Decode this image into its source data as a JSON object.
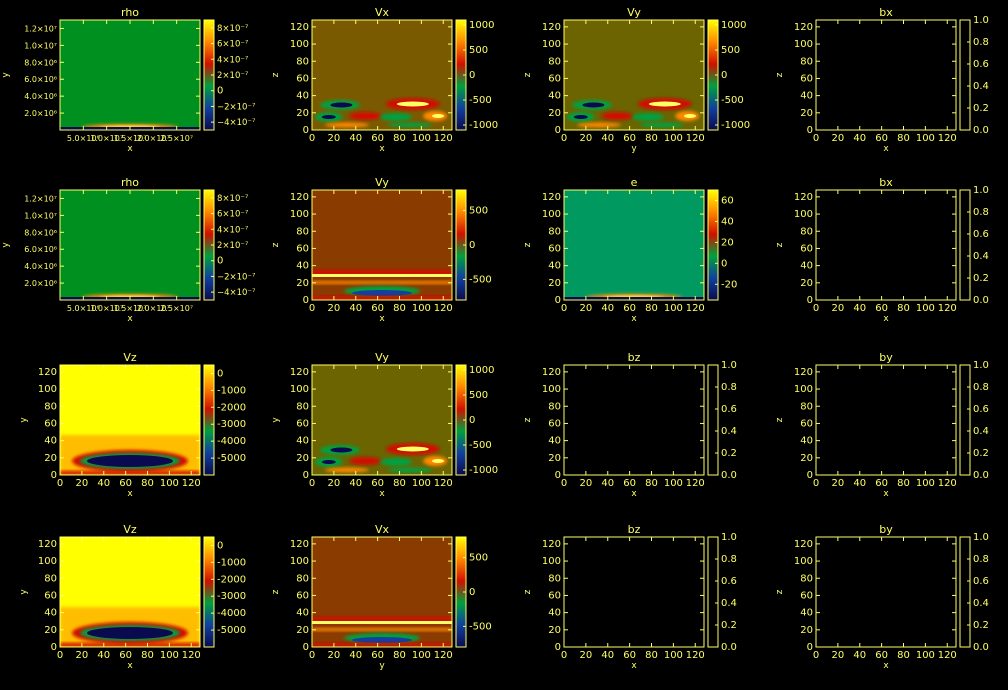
{
  "colors": {
    "foreground": "#ffff66",
    "background": "#000000",
    "empty_plot": "#000000"
  },
  "colormap": {
    "name": "red-yellow-green-blue",
    "stops": [
      "#0a0a50",
      "#1040a0",
      "#00a040",
      "#d01000",
      "#ff8800",
      "#ffff00"
    ]
  },
  "chart_data": [
    {
      "type": "heatmap",
      "title": "rho",
      "xlabel": "x",
      "ylabel": "y",
      "xticks": [
        "5.0×10⁶",
        "1.0×10⁷",
        "1.5×10⁷",
        "2.0×10⁷",
        "2.5×10⁷"
      ],
      "yticks": [
        "2.0×10⁶",
        "4.0×10⁶",
        "6.0×10⁶",
        "8.0×10⁶",
        "1.0×10⁷",
        "1.2×10⁷"
      ],
      "ylim": [
        0,
        13000000
      ],
      "ytick_values": [
        2000000,
        4000000,
        6000000,
        8000000,
        10000000,
        12000000
      ],
      "xlim": [
        0,
        30000000
      ],
      "xtick_values": [
        5000000,
        10000000,
        15000000,
        20000000,
        25000000
      ],
      "cbar_ticks": [
        "8×10⁻⁷",
        "6×10⁻⁷",
        "4×10⁻⁷",
        "2×10⁻⁷",
        "0",
        "−2×10⁻⁷",
        "−4×10⁻⁷"
      ],
      "clim": [
        -5e-07,
        9e-07
      ],
      "cbar_values": [
        8e-07,
        6e-07,
        4e-07,
        2e-07,
        0,
        -2e-07,
        -4e-07
      ],
      "pattern": "base_bottom",
      "background": "#009020"
    },
    {
      "type": "heatmap",
      "title": "Vx",
      "xlabel": "x",
      "ylabel": "z",
      "xlim": [
        0,
        128
      ],
      "ylim": [
        0,
        128
      ],
      "xticks": [
        "0",
        "20",
        "40",
        "60",
        "80",
        "100",
        "120"
      ],
      "yticks": [
        "0",
        "20",
        "40",
        "60",
        "80",
        "100",
        "120"
      ],
      "cbar_ticks": [
        "1000",
        "500",
        "0",
        "-500",
        "-1000"
      ],
      "clim": [
        -1100,
        1100
      ],
      "cbar_values": [
        1000,
        500,
        0,
        -500,
        -1000
      ],
      "pattern": "waves_bottom",
      "background": "#7a5a00"
    },
    {
      "type": "heatmap",
      "title": "Vy",
      "xlabel": "y",
      "ylabel": "z",
      "xlim": [
        0,
        128
      ],
      "ylim": [
        0,
        128
      ],
      "xticks": [
        "0",
        "20",
        "40",
        "60",
        "80",
        "100",
        "120"
      ],
      "yticks": [
        "0",
        "20",
        "40",
        "60",
        "80",
        "100",
        "120"
      ],
      "cbar_ticks": [
        "1000",
        "500",
        "0",
        "-500",
        "-1000"
      ],
      "clim": [
        -1100,
        1100
      ],
      "cbar_values": [
        1000,
        500,
        0,
        -500,
        -1000
      ],
      "pattern": "waves_bottom",
      "background": "#6b6400"
    },
    {
      "type": "heatmap",
      "title": "bx",
      "xlabel": "x",
      "ylabel": "z",
      "xlim": [
        0,
        128
      ],
      "ylim": [
        0,
        128
      ],
      "xticks": [
        "0",
        "20",
        "40",
        "60",
        "80",
        "100",
        "120"
      ],
      "yticks": [
        "0",
        "20",
        "40",
        "60",
        "80",
        "100",
        "120"
      ],
      "cbar_ticks": [
        "1.0",
        "0.8",
        "0.6",
        "0.4",
        "0.2",
        "0.0"
      ],
      "clim": [
        0,
        1
      ],
      "cbar_values": [
        1,
        0.8,
        0.6,
        0.4,
        0.2,
        0
      ],
      "pattern": "empty",
      "background": "#000000"
    },
    {
      "type": "heatmap",
      "title": "rho",
      "xlabel": "x",
      "ylabel": "y",
      "xticks": [
        "5.0×10⁶",
        "1.0×10⁷",
        "1.5×10⁷",
        "2.0×10⁷",
        "2.5×10⁷"
      ],
      "yticks": [
        "2.0×10⁶",
        "4.0×10⁶",
        "6.0×10⁶",
        "8.0×10⁶",
        "1.0×10⁷",
        "1.2×10⁷"
      ],
      "ylim": [
        0,
        13000000
      ],
      "ytick_values": [
        2000000,
        4000000,
        6000000,
        8000000,
        10000000,
        12000000
      ],
      "xlim": [
        0,
        30000000
      ],
      "xtick_values": [
        5000000,
        10000000,
        15000000,
        20000000,
        25000000
      ],
      "cbar_ticks": [
        "8×10⁻⁷",
        "6×10⁻⁷",
        "4×10⁻⁷",
        "2×10⁻⁷",
        "0",
        "−2×10⁻⁷",
        "−4×10⁻⁷"
      ],
      "clim": [
        -5e-07,
        9e-07
      ],
      "cbar_values": [
        8e-07,
        6e-07,
        4e-07,
        2e-07,
        0,
        -2e-07,
        -4e-07
      ],
      "pattern": "base_bottom",
      "background": "#009020"
    },
    {
      "type": "heatmap",
      "title": "Vy",
      "xlabel": "x",
      "ylabel": "z",
      "xlim": [
        0,
        128
      ],
      "ylim": [
        0,
        128
      ],
      "xticks": [
        "0",
        "20",
        "40",
        "60",
        "80",
        "100",
        "120"
      ],
      "yticks": [
        "0",
        "20",
        "40",
        "60",
        "80",
        "100",
        "120"
      ],
      "cbar_ticks": [
        "500",
        "0",
        "-500"
      ],
      "clim": [
        -800,
        800
      ],
      "cbar_values": [
        500,
        0,
        -500
      ],
      "pattern": "bands_bottom",
      "background": "#8a3c00"
    },
    {
      "type": "heatmap",
      "title": "e",
      "xlabel": "x",
      "ylabel": "z",
      "xlim": [
        0,
        128
      ],
      "ylim": [
        0,
        128
      ],
      "xticks": [
        "0",
        "20",
        "40",
        "60",
        "80",
        "100",
        "120"
      ],
      "yticks": [
        "0",
        "20",
        "40",
        "60",
        "80",
        "100",
        "120"
      ],
      "cbar_ticks": [
        "60",
        "40",
        "20",
        "0",
        "-20"
      ],
      "clim": [
        -35,
        70
      ],
      "cbar_values": [
        60,
        40,
        20,
        0,
        -20
      ],
      "pattern": "base_bottom",
      "background": "#009a60"
    },
    {
      "type": "heatmap",
      "title": "bx",
      "xlabel": "x",
      "ylabel": "z",
      "xlim": [
        0,
        128
      ],
      "ylim": [
        0,
        128
      ],
      "xticks": [
        "0",
        "20",
        "40",
        "60",
        "80",
        "100",
        "120"
      ],
      "yticks": [
        "0",
        "20",
        "40",
        "60",
        "80",
        "100",
        "120"
      ],
      "cbar_ticks": [
        "1.0",
        "0.8",
        "0.6",
        "0.4",
        "0.2",
        "0.0"
      ],
      "clim": [
        0,
        1
      ],
      "cbar_values": [
        1,
        0.8,
        0.6,
        0.4,
        0.2,
        0
      ],
      "pattern": "empty",
      "background": "#000000"
    },
    {
      "type": "heatmap",
      "title": "Vz",
      "xlabel": "x",
      "ylabel": "y",
      "xlim": [
        0,
        128
      ],
      "ylim": [
        0,
        128
      ],
      "xticks": [
        "0",
        "20",
        "40",
        "60",
        "80",
        "100",
        "120"
      ],
      "yticks": [
        "0",
        "20",
        "40",
        "60",
        "80",
        "100",
        "120"
      ],
      "cbar_ticks": [
        "0",
        "-1000",
        "-2000",
        "-3000",
        "-4000",
        "-5000"
      ],
      "clim": [
        -6000,
        500
      ],
      "cbar_values": [
        0,
        -1000,
        -2000,
        -3000,
        -4000,
        -5000
      ],
      "pattern": "blob_bottom",
      "background": "#ffff00"
    },
    {
      "type": "heatmap",
      "title": "Vy",
      "xlabel": "x",
      "ylabel": "y",
      "xlim": [
        0,
        128
      ],
      "ylim": [
        0,
        128
      ],
      "xticks": [
        "0",
        "20",
        "40",
        "60",
        "80",
        "100",
        "120"
      ],
      "yticks": [
        "0",
        "20",
        "40",
        "60",
        "80",
        "100",
        "120"
      ],
      "cbar_ticks": [
        "1000",
        "500",
        "0",
        "-500",
        "-1000"
      ],
      "clim": [
        -1100,
        1100
      ],
      "cbar_values": [
        1000,
        500,
        0,
        -500,
        -1000
      ],
      "pattern": "waves_bottom",
      "background": "#6b6400"
    },
    {
      "type": "heatmap",
      "title": "bz",
      "xlabel": "x",
      "ylabel": "z",
      "xlim": [
        0,
        128
      ],
      "ylim": [
        0,
        128
      ],
      "xticks": [
        "0",
        "20",
        "40",
        "60",
        "80",
        "100",
        "120"
      ],
      "yticks": [
        "0",
        "20",
        "40",
        "60",
        "80",
        "100",
        "120"
      ],
      "cbar_ticks": [
        "1.0",
        "0.8",
        "0.6",
        "0.4",
        "0.2",
        "0.0"
      ],
      "clim": [
        0,
        1
      ],
      "cbar_values": [
        1,
        0.8,
        0.6,
        0.4,
        0.2,
        0
      ],
      "pattern": "empty",
      "background": "#000000"
    },
    {
      "type": "heatmap",
      "title": "by",
      "xlabel": "x",
      "ylabel": "z",
      "xlim": [
        0,
        128
      ],
      "ylim": [
        0,
        128
      ],
      "xticks": [
        "0",
        "20",
        "40",
        "60",
        "80",
        "100",
        "120"
      ],
      "yticks": [
        "0",
        "20",
        "40",
        "60",
        "80",
        "100",
        "120"
      ],
      "cbar_ticks": [
        "1.0",
        "0.8",
        "0.6",
        "0.4",
        "0.2",
        "0.0"
      ],
      "clim": [
        0,
        1
      ],
      "cbar_values": [
        1,
        0.8,
        0.6,
        0.4,
        0.2,
        0
      ],
      "pattern": "empty",
      "background": "#000000"
    },
    {
      "type": "heatmap",
      "title": "Vz",
      "xlabel": "x",
      "ylabel": "y",
      "xlim": [
        0,
        128
      ],
      "ylim": [
        0,
        128
      ],
      "xticks": [
        "0",
        "20",
        "40",
        "60",
        "80",
        "100",
        "120"
      ],
      "yticks": [
        "0",
        "20",
        "40",
        "60",
        "80",
        "100",
        "120"
      ],
      "cbar_ticks": [
        "0",
        "-1000",
        "-2000",
        "-3000",
        "-4000",
        "-5000"
      ],
      "clim": [
        -6000,
        500
      ],
      "cbar_values": [
        0,
        -1000,
        -2000,
        -3000,
        -4000,
        -5000
      ],
      "pattern": "blob_bottom",
      "background": "#ffff00"
    },
    {
      "type": "heatmap",
      "title": "Vx",
      "xlabel": "y",
      "ylabel": "z",
      "xlim": [
        0,
        128
      ],
      "ylim": [
        0,
        128
      ],
      "xticks": [
        "0",
        "20",
        "40",
        "60",
        "80",
        "100",
        "120"
      ],
      "yticks": [
        "0",
        "20",
        "40",
        "60",
        "80",
        "100",
        "120"
      ],
      "cbar_ticks": [
        "500",
        "0",
        "-500"
      ],
      "clim": [
        -800,
        800
      ],
      "cbar_values": [
        500,
        0,
        -500
      ],
      "pattern": "bands_bottom",
      "background": "#8a3c00"
    },
    {
      "type": "heatmap",
      "title": "bz",
      "xlabel": "x",
      "ylabel": "z",
      "xlim": [
        0,
        128
      ],
      "ylim": [
        0,
        128
      ],
      "xticks": [
        "0",
        "20",
        "40",
        "60",
        "80",
        "100",
        "120"
      ],
      "yticks": [
        "0",
        "20",
        "40",
        "60",
        "80",
        "100",
        "120"
      ],
      "cbar_ticks": [
        "1.0",
        "0.8",
        "0.6",
        "0.4",
        "0.2",
        "0.0"
      ],
      "clim": [
        0,
        1
      ],
      "cbar_values": [
        1,
        0.8,
        0.6,
        0.4,
        0.2,
        0
      ],
      "pattern": "empty",
      "background": "#000000"
    },
    {
      "type": "heatmap",
      "title": "by",
      "xlabel": "x",
      "ylabel": "z",
      "xlim": [
        0,
        128
      ],
      "ylim": [
        0,
        128
      ],
      "xticks": [
        "0",
        "20",
        "40",
        "60",
        "80",
        "100",
        "120"
      ],
      "yticks": [
        "0",
        "20",
        "40",
        "60",
        "80",
        "100",
        "120"
      ],
      "cbar_ticks": [
        "1.0",
        "0.8",
        "0.6",
        "0.4",
        "0.2",
        "0.0"
      ],
      "clim": [
        0,
        1
      ],
      "cbar_values": [
        1,
        0.8,
        0.6,
        0.4,
        0.2,
        0
      ],
      "pattern": "empty",
      "background": "#000000"
    }
  ]
}
